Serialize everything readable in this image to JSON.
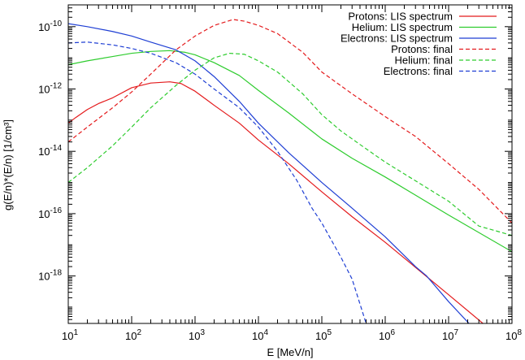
{
  "chart_data": {
    "type": "line",
    "xlabel": "E [MeV/n]",
    "ylabel": "g(E/n)*(E/n) [1/cm³]",
    "xscale": "log",
    "yscale": "log",
    "xlim": [
      10,
      100000000
    ],
    "ylim": [
      3e-20,
      5e-10
    ],
    "x_ticks": [
      {
        "value": 10,
        "base": "10",
        "exp": "1"
      },
      {
        "value": 100,
        "base": "10",
        "exp": "2"
      },
      {
        "value": 1000,
        "base": "10",
        "exp": "3"
      },
      {
        "value": 10000,
        "base": "10",
        "exp": "4"
      },
      {
        "value": 100000,
        "base": "10",
        "exp": "5"
      },
      {
        "value": 1000000,
        "base": "10",
        "exp": "6"
      },
      {
        "value": 10000000,
        "base": "10",
        "exp": "7"
      },
      {
        "value": 100000000,
        "base": "10",
        "exp": "8"
      }
    ],
    "y_ticks": [
      {
        "value": 1e-18,
        "base": "10",
        "exp": "-18"
      },
      {
        "value": 1e-16,
        "base": "10",
        "exp": "-16"
      },
      {
        "value": 1e-14,
        "base": "10",
        "exp": "-14"
      },
      {
        "value": 1e-12,
        "base": "10",
        "exp": "-12"
      },
      {
        "value": 1e-10,
        "base": "10",
        "exp": "-10"
      }
    ],
    "grid": false,
    "legend_position": "top-right",
    "series": [
      {
        "name": "Protons: LIS spectrum",
        "color": "#e41a1c",
        "dash": "solid",
        "points": [
          [
            10,
            8e-14
          ],
          [
            13,
            1.2e-13
          ],
          [
            20,
            2.2e-13
          ],
          [
            30,
            3.4e-13
          ],
          [
            50,
            5.2e-13
          ],
          [
            100,
            1.1e-12
          ],
          [
            200,
            1.55e-12
          ],
          [
            400,
            1.7e-12
          ],
          [
            600,
            1.5e-12
          ],
          [
            1000,
            8.5e-13
          ],
          [
            2000,
            3e-13
          ],
          [
            5000,
            8e-14
          ],
          [
            10000,
            2.3e-14
          ],
          [
            30000,
            4e-15
          ],
          [
            100000,
            5e-16
          ],
          [
            300000,
            8e-17
          ],
          [
            1000000,
            1.2e-17
          ],
          [
            10000000,
            2.5e-19
          ],
          [
            100000000,
            5e-21
          ]
        ]
      },
      {
        "name": "Helium: LIS spectrum",
        "color": "#2ecc2e",
        "dash": "solid",
        "points": [
          [
            10,
            6e-12
          ],
          [
            20,
            8e-12
          ],
          [
            50,
            1.1e-11
          ],
          [
            100,
            1.4e-11
          ],
          [
            200,
            1.6e-11
          ],
          [
            400,
            1.7e-11
          ],
          [
            700,
            1.5e-11
          ],
          [
            1000,
            1.25e-11
          ],
          [
            2000,
            7e-12
          ],
          [
            5000,
            2.7e-12
          ],
          [
            10000,
            9e-13
          ],
          [
            30000,
            1.7e-13
          ],
          [
            100000,
            2.5e-14
          ],
          [
            300000,
            6e-15
          ],
          [
            1000000,
            1.5e-15
          ],
          [
            10000000,
            9e-17
          ],
          [
            100000000,
            6e-18
          ]
        ]
      },
      {
        "name": "Electrons: LIS spectrum",
        "color": "#1f3fd4",
        "dash": "solid",
        "points": [
          [
            10,
            1.25e-10
          ],
          [
            20,
            1e-10
          ],
          [
            50,
            7e-11
          ],
          [
            100,
            5e-11
          ],
          [
            200,
            3.2e-11
          ],
          [
            500,
            1.8e-11
          ],
          [
            1000,
            8e-12
          ],
          [
            2000,
            2.5e-12
          ],
          [
            5000,
            4e-13
          ],
          [
            10000,
            8e-14
          ],
          [
            30000,
            9e-15
          ],
          [
            100000,
            1e-15
          ],
          [
            300000,
            1.5e-16
          ],
          [
            1000000,
            1.8e-17
          ],
          [
            3000000,
            2e-18
          ],
          [
            4500000,
            1e-18
          ],
          [
            10000000,
            1.5e-19
          ],
          [
            100000000,
            1e-21
          ]
        ]
      },
      {
        "name": "Protons: final",
        "color": "#e41a1c",
        "dash": "dashed",
        "points": [
          [
            10,
            2e-14
          ],
          [
            20,
            6e-14
          ],
          [
            50,
            2.5e-13
          ],
          [
            100,
            8e-13
          ],
          [
            200,
            3e-12
          ],
          [
            500,
            1.8e-11
          ],
          [
            1000,
            5e-11
          ],
          [
            2000,
            1.1e-10
          ],
          [
            4000,
            1.7e-10
          ],
          [
            6000,
            1.5e-10
          ],
          [
            10000,
            1.1e-10
          ],
          [
            20000,
            6e-11
          ],
          [
            50000,
            1.5e-11
          ],
          [
            100000,
            3.5e-12
          ],
          [
            300000,
            7e-13
          ],
          [
            1000000,
            1.3e-13
          ],
          [
            3000000,
            3e-14
          ],
          [
            10000000,
            4e-15
          ],
          [
            30000000,
            6e-16
          ],
          [
            100000000,
            5e-17
          ]
        ]
      },
      {
        "name": "Helium: final",
        "color": "#2ecc2e",
        "dash": "dashed",
        "points": [
          [
            10,
            1e-15
          ],
          [
            20,
            3e-15
          ],
          [
            50,
            1.5e-14
          ],
          [
            100,
            6e-14
          ],
          [
            200,
            2.5e-13
          ],
          [
            500,
            1.3e-12
          ],
          [
            1000,
            4e-12
          ],
          [
            2000,
            1e-11
          ],
          [
            3500,
            1.4e-11
          ],
          [
            6000,
            1.3e-11
          ],
          [
            10000,
            8e-12
          ],
          [
            20000,
            3.5e-12
          ],
          [
            50000,
            7e-13
          ],
          [
            100000,
            1.5e-13
          ],
          [
            200000,
            4.5e-14
          ],
          [
            500000,
            1.2e-14
          ],
          [
            1000000,
            4.5e-15
          ],
          [
            10000000,
            2.5e-16
          ],
          [
            30000000,
            4e-17
          ],
          [
            100000000,
            2e-17
          ]
        ]
      },
      {
        "name": "Electrons: final",
        "color": "#1f3fd4",
        "dash": "dashed",
        "points": [
          [
            10,
            3e-11
          ],
          [
            20,
            3.2e-11
          ],
          [
            50,
            2.6e-11
          ],
          [
            100,
            2e-11
          ],
          [
            200,
            1.4e-11
          ],
          [
            500,
            7e-12
          ],
          [
            1000,
            3e-12
          ],
          [
            2000,
            1e-12
          ],
          [
            5000,
            2.5e-13
          ],
          [
            10000,
            6e-14
          ],
          [
            20000,
            1e-14
          ],
          [
            40000,
            1.2e-15
          ],
          [
            70000,
            1.5e-16
          ],
          [
            100000,
            5e-17
          ],
          [
            200000,
            4e-18
          ],
          [
            300000,
            8e-19
          ],
          [
            500000,
            3e-20
          ]
        ]
      }
    ]
  }
}
